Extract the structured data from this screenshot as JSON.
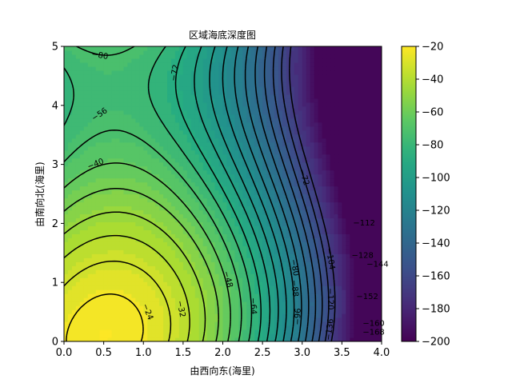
{
  "chart_data": {
    "type": "heatmap",
    "title": "区域海底深度图",
    "xlabel": "由西向东(海里)",
    "ylabel": "由南向北(海里)",
    "xlim": [
      0.0,
      4.0
    ],
    "ylim": [
      0,
      5
    ],
    "x_ticks": [
      "0.0",
      "0.5",
      "1.0",
      "1.5",
      "2.0",
      "2.5",
      "3.0",
      "3.5",
      "4.0"
    ],
    "y_ticks": [
      "0",
      "1",
      "2",
      "3",
      "4",
      "5"
    ],
    "colormap": "viridis",
    "filled_contours": true,
    "contour_lines": {
      "style": "dashed",
      "color": "#000000",
      "levels": [
        -168,
        -160,
        -152,
        -144,
        -136,
        -128,
        -120,
        -112,
        -104,
        -96,
        -88,
        -80,
        -72,
        -64,
        -56,
        -48,
        -40,
        -32,
        -24
      ]
    },
    "contour_labels": [
      {
        "text": "−80",
        "x": 0.45,
        "y": 4.84
      },
      {
        "text": "−72",
        "x": 1.4,
        "y": 4.55
      },
      {
        "text": "−56",
        "x": 0.45,
        "y": 3.84
      },
      {
        "text": "−40",
        "x": 0.4,
        "y": 3.0
      },
      {
        "text": "−72",
        "x": 3.02,
        "y": 2.78
      },
      {
        "text": "−48",
        "x": 2.06,
        "y": 1.05
      },
      {
        "text": "−24",
        "x": 1.05,
        "y": 0.5
      },
      {
        "text": "−32",
        "x": 1.47,
        "y": 0.55
      },
      {
        "text": "−64",
        "x": 2.38,
        "y": 0.6
      },
      {
        "text": "−80",
        "x": 2.9,
        "y": 1.25
      },
      {
        "text": "−88",
        "x": 2.9,
        "y": 0.9
      },
      {
        "text": "−96",
        "x": 2.95,
        "y": 0.42
      },
      {
        "text": "−104",
        "x": 3.35,
        "y": 1.4
      },
      {
        "text": "−112",
        "x": 3.78,
        "y": 2.0
      },
      {
        "text": "−120",
        "x": 3.35,
        "y": 0.72
      },
      {
        "text": "−128",
        "x": 3.76,
        "y": 1.45
      },
      {
        "text": "−136",
        "x": 3.35,
        "y": 0.2
      },
      {
        "text": "−144",
        "x": 3.95,
        "y": 1.3
      },
      {
        "text": "−152",
        "x": 3.82,
        "y": 0.75
      },
      {
        "text": "−160",
        "x": 3.9,
        "y": 0.3
      },
      {
        "text": "−168",
        "x": 3.9,
        "y": 0.15
      }
    ],
    "colorbar": {
      "range": [
        -200,
        -20
      ],
      "ticks": [
        "−200",
        "−180",
        "−160",
        "−140",
        "−120",
        "−100",
        "−80",
        "−60",
        "−40",
        "−20"
      ]
    }
  }
}
